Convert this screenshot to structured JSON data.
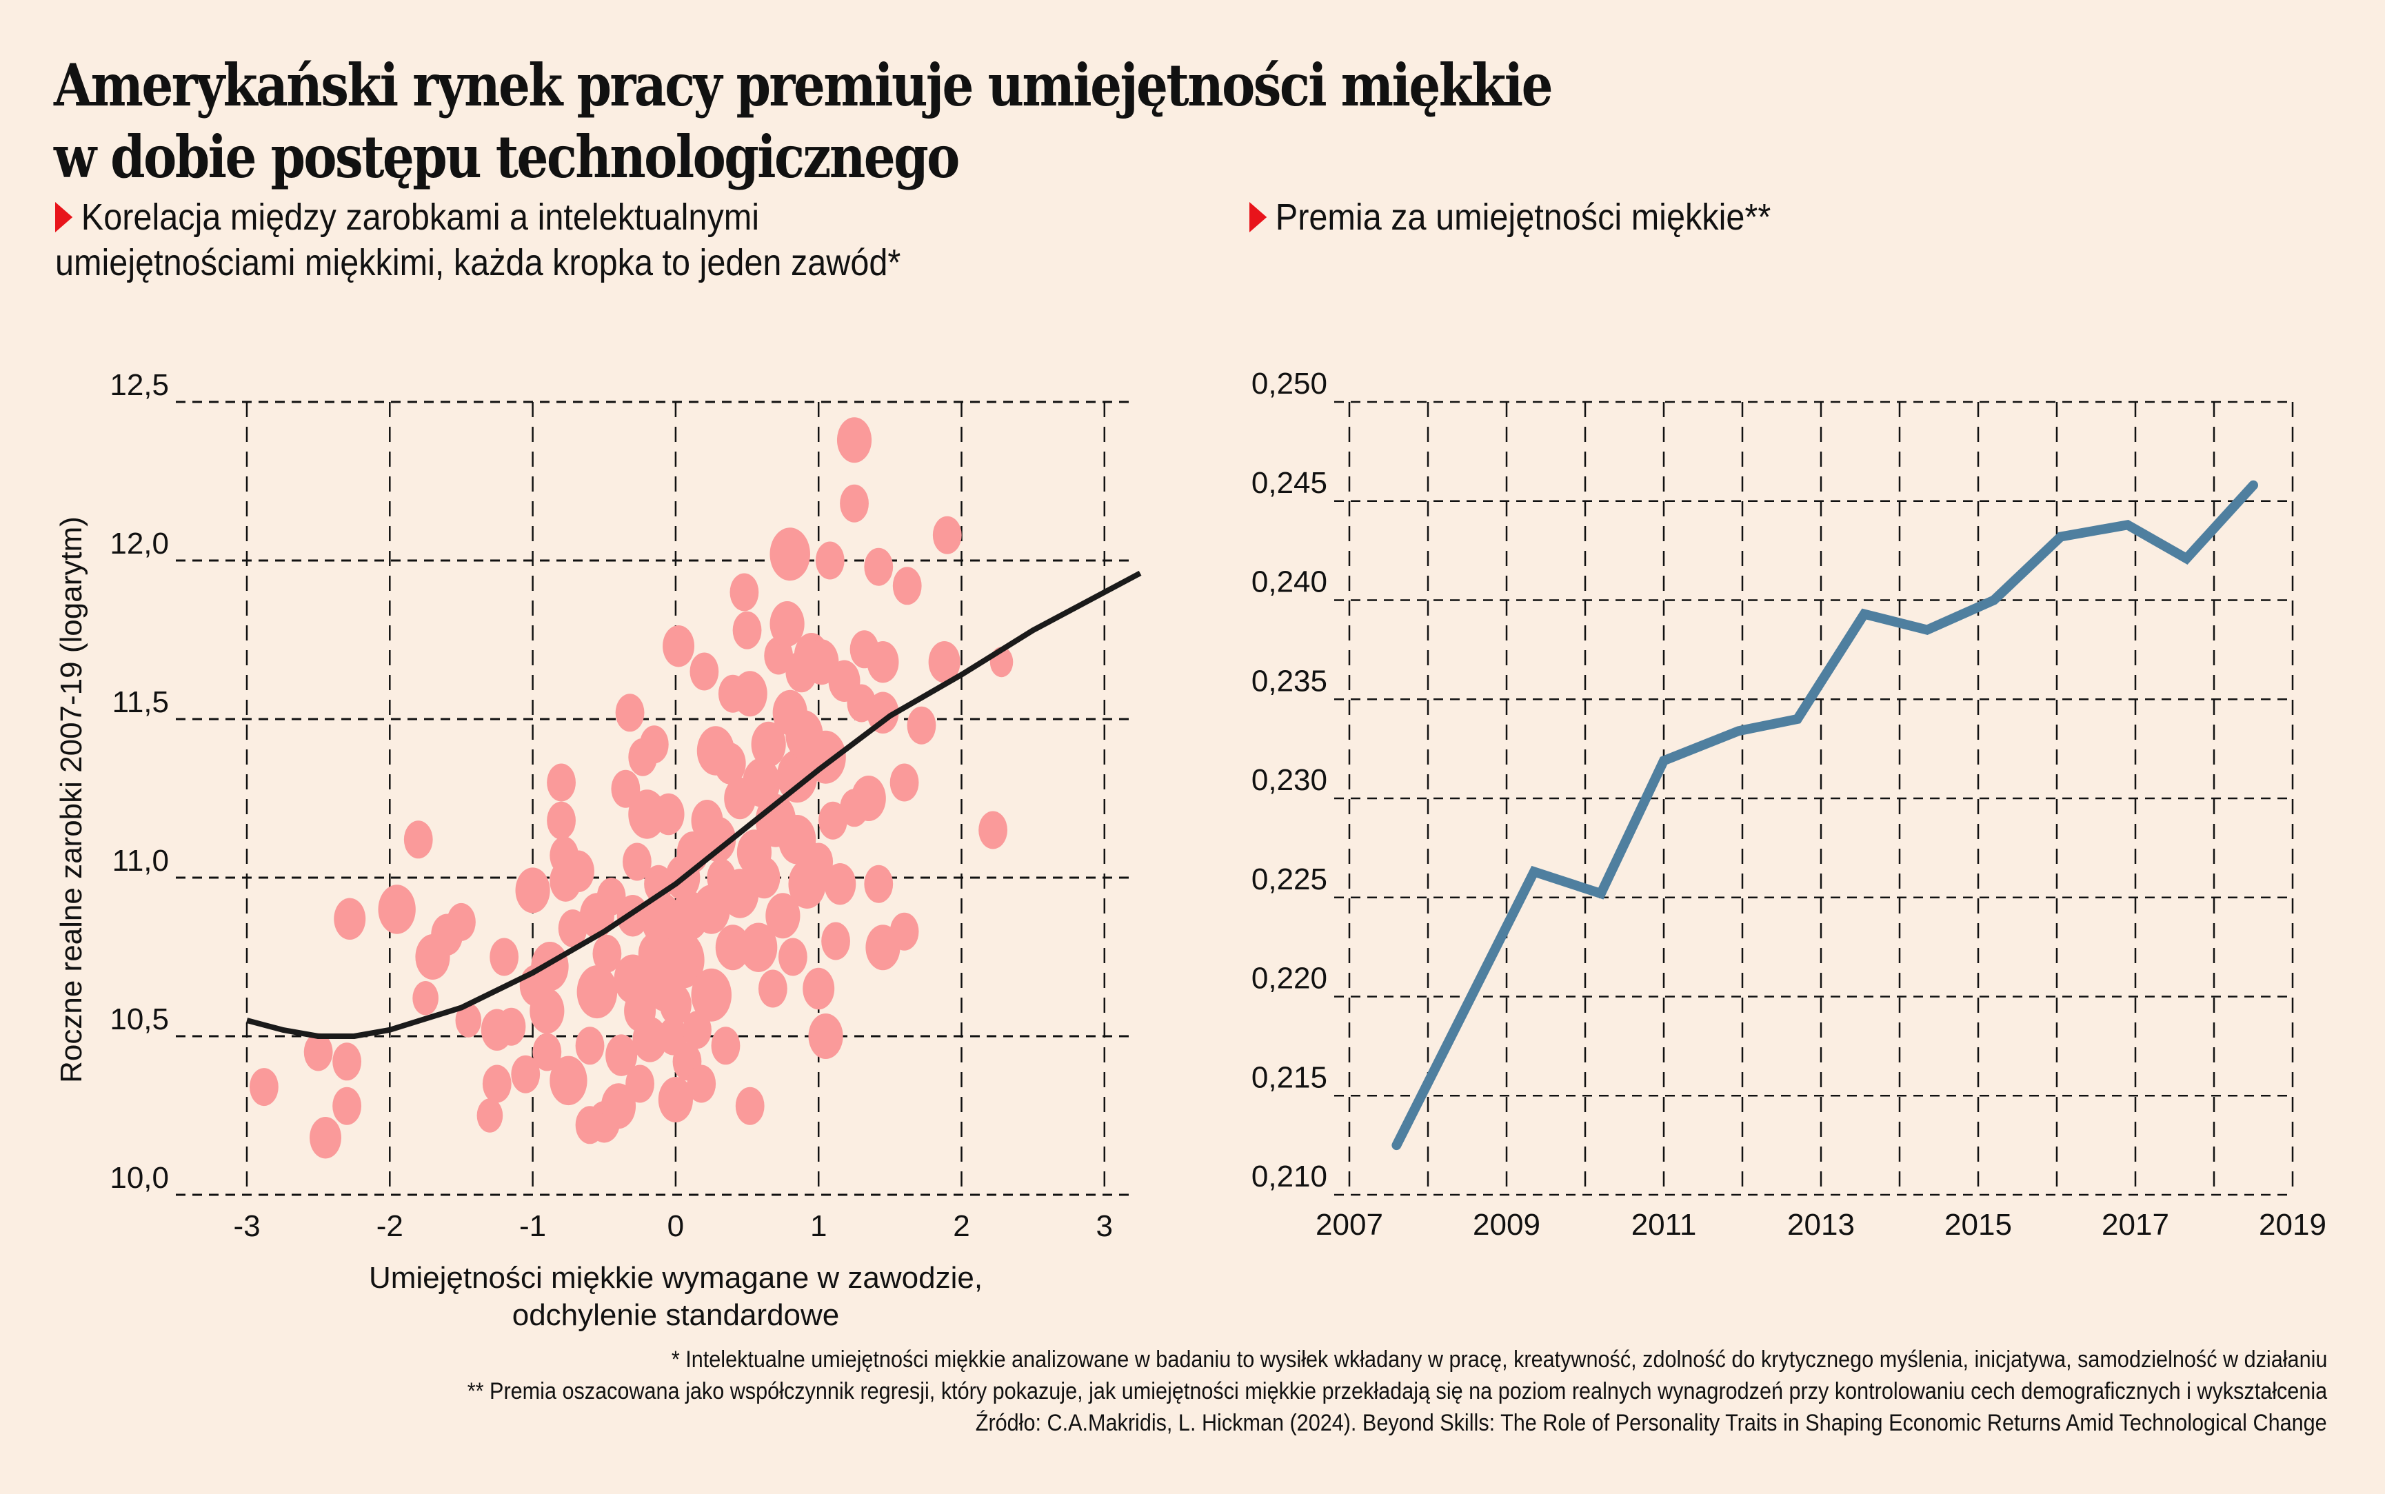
{
  "title": {
    "line1": "Amerykański rynek pracy premiuje umiejętności miękkie",
    "line2": "w dobie postępu technologicznego"
  },
  "left_panel": {
    "subtitle_line1": "Korelacja między zarobkami a intelektualnymi",
    "subtitle_line2": "umiejętnościami miękkimi, każda kropka to jeden zawód*"
  },
  "right_panel": {
    "subtitle": "Premia za umiejętności miękkie**"
  },
  "footnotes": {
    "note1": "* Intelektualne umiejętności miękkie analizowane w badaniu to wysiłek wkładany w pracę, kreatywność, zdolność do krytycznego myślenia, inicjatywa, samodzielność w działaniu",
    "note2": "** Premia oszacowana jako współczynnik regresji, który pokazuje, jak umiejętności miękkie przekładają się na poziom realnych wynagrodzeń przy kontrolowaniu cech demograficznych i wykształcenia",
    "source": "Źródło: C.A.Makridis, L. Hickman (2024). Beyond Skills: The Role of Personality Traits in Shaping Economic Returns Amid Technological Change"
  },
  "colors": {
    "background": "#fbeee2",
    "dot": "#fa9a9a",
    "fit_line": "#1a1a1a",
    "premium_line": "#4f7f9f",
    "marker": "#e8141b"
  },
  "chart_data": [
    {
      "type": "scatter",
      "title": "Korelacja między zarobkami a intelektualnymi umiejętnościami miękkimi, każda kropka to jeden zawód*",
      "xlabel": "Umiejętności miękkie wymagane w zawodzie, odchylenie standardowe",
      "ylabel": "Roczne realne zarobki 2007-19 (logarytm)",
      "xlim": [
        -3.5,
        3.3
      ],
      "ylim": [
        10.0,
        12.5
      ],
      "x_ticks": [
        -3,
        -2,
        -1,
        0,
        1,
        2,
        3
      ],
      "x_tick_labels": [
        "-3",
        "-2",
        "-1",
        "0",
        "1",
        "2",
        "3"
      ],
      "y_ticks": [
        10.0,
        10.5,
        11.0,
        11.5,
        12.0,
        12.5
      ],
      "y_tick_labels": [
        "10,0",
        "10,5",
        "11,0",
        "11,5",
        "12,0",
        "12,5"
      ],
      "grid": true,
      "fit_curve": [
        [
          -3.0,
          10.55
        ],
        [
          -2.75,
          10.52
        ],
        [
          -2.5,
          10.5
        ],
        [
          -2.25,
          10.5
        ],
        [
          -2.0,
          10.52
        ],
        [
          -1.5,
          10.59
        ],
        [
          -1.0,
          10.7
        ],
        [
          -0.5,
          10.83
        ],
        [
          0.0,
          10.98
        ],
        [
          0.5,
          11.16
        ],
        [
          1.0,
          11.34
        ],
        [
          1.5,
          11.51
        ],
        [
          2.0,
          11.64
        ],
        [
          2.5,
          11.78
        ],
        [
          3.0,
          11.9
        ],
        [
          3.25,
          11.96
        ]
      ],
      "points": [
        [
          -2.88,
          10.34,
          1.0
        ],
        [
          -2.5,
          10.45,
          1.0
        ],
        [
          -2.45,
          10.18,
          1.1
        ],
        [
          -2.3,
          10.42,
          1.0
        ],
        [
          -2.3,
          10.28,
          1.0
        ],
        [
          -2.28,
          10.87,
          1.1
        ],
        [
          -1.95,
          10.9,
          1.3
        ],
        [
          -1.8,
          11.12,
          1.0
        ],
        [
          -1.75,
          10.62,
          0.9
        ],
        [
          -1.7,
          10.75,
          1.2
        ],
        [
          -1.6,
          10.82,
          1.1
        ],
        [
          -1.5,
          10.86,
          1.0
        ],
        [
          -1.45,
          10.55,
          0.9
        ],
        [
          -1.3,
          10.25,
          0.9
        ],
        [
          -1.25,
          10.35,
          1.0
        ],
        [
          -1.25,
          10.52,
          1.1
        ],
        [
          -1.2,
          10.75,
          1.0
        ],
        [
          -1.15,
          10.53,
          1.0
        ],
        [
          -1.05,
          10.38,
          1.0
        ],
        [
          -1.0,
          10.96,
          1.2
        ],
        [
          -0.98,
          10.66,
          1.1
        ],
        [
          -0.9,
          10.58,
          1.2
        ],
        [
          -0.9,
          10.45,
          1.0
        ],
        [
          -0.88,
          10.72,
          1.3
        ],
        [
          -0.8,
          11.3,
          1.0
        ],
        [
          -0.8,
          11.18,
          1.0
        ],
        [
          -0.78,
          11.07,
          1.0
        ],
        [
          -0.77,
          10.99,
          1.1
        ],
        [
          -0.75,
          10.36,
          1.3
        ],
        [
          -0.72,
          10.84,
          1.0
        ],
        [
          -0.68,
          11.02,
          1.1
        ],
        [
          -0.6,
          10.47,
          1.0
        ],
        [
          -0.6,
          10.22,
          1.0
        ],
        [
          -0.55,
          10.88,
          1.2
        ],
        [
          -0.55,
          10.64,
          1.4
        ],
        [
          -0.5,
          10.23,
          1.1
        ],
        [
          -0.48,
          10.76,
          1.0
        ],
        [
          -0.45,
          10.94,
          1.0
        ],
        [
          -0.4,
          10.28,
          1.2
        ],
        [
          -0.38,
          10.44,
          1.1
        ],
        [
          -0.35,
          11.28,
          1.0
        ],
        [
          -0.32,
          11.52,
          1.0
        ],
        [
          -0.3,
          10.68,
          1.3
        ],
        [
          -0.3,
          10.88,
          1.1
        ],
        [
          -0.27,
          11.05,
          1.0
        ],
        [
          -0.25,
          10.35,
          1.0
        ],
        [
          -0.25,
          10.58,
          1.1
        ],
        [
          -0.23,
          11.38,
          1.0
        ],
        [
          -0.2,
          11.2,
          1.3
        ],
        [
          -0.18,
          10.49,
          1.2
        ],
        [
          -0.15,
          10.76,
          1.1
        ],
        [
          -0.15,
          11.42,
          1.0
        ],
        [
          -0.12,
          10.98,
          1.0
        ],
        [
          -0.1,
          10.87,
          1.4
        ],
        [
          -0.08,
          10.65,
          1.2
        ],
        [
          -0.05,
          11.2,
          1.1
        ],
        [
          -0.02,
          10.5,
          1.0
        ],
        [
          0.0,
          10.6,
          1.1
        ],
        [
          0.0,
          10.3,
          1.2
        ],
        [
          0.02,
          11.73,
          1.1
        ],
        [
          0.05,
          11.0,
          1.2
        ],
        [
          0.05,
          10.74,
          1.5
        ],
        [
          0.08,
          10.42,
          1.0
        ],
        [
          0.1,
          10.88,
          1.3
        ],
        [
          0.12,
          11.08,
          1.1
        ],
        [
          0.15,
          10.52,
          1.0
        ],
        [
          0.18,
          10.35,
          1.0
        ],
        [
          0.2,
          11.65,
          1.0
        ],
        [
          0.22,
          11.18,
          1.1
        ],
        [
          0.25,
          10.9,
          1.3
        ],
        [
          0.25,
          10.63,
          1.4
        ],
        [
          0.28,
          11.4,
          1.3
        ],
        [
          0.3,
          11.12,
          1.2
        ],
        [
          0.32,
          11.0,
          1.0
        ],
        [
          0.35,
          10.47,
          1.0
        ],
        [
          0.38,
          11.36,
          1.1
        ],
        [
          0.4,
          10.78,
          1.2
        ],
        [
          0.4,
          11.58,
          1.0
        ],
        [
          0.45,
          11.25,
          1.1
        ],
        [
          0.45,
          10.95,
          1.3
        ],
        [
          0.48,
          11.9,
          1.0
        ],
        [
          0.5,
          11.78,
          1.0
        ],
        [
          0.52,
          10.28,
          1.0
        ],
        [
          0.52,
          11.58,
          1.2
        ],
        [
          0.55,
          11.08,
          1.2
        ],
        [
          0.58,
          10.78,
          1.3
        ],
        [
          0.6,
          11.3,
          1.3
        ],
        [
          0.62,
          11.0,
          1.1
        ],
        [
          0.65,
          11.42,
          1.2
        ],
        [
          0.68,
          10.65,
          1.0
        ],
        [
          0.7,
          11.18,
          1.4
        ],
        [
          0.72,
          11.7,
          1.0
        ],
        [
          0.75,
          10.88,
          1.2
        ],
        [
          0.78,
          11.8,
          1.2
        ],
        [
          0.8,
          12.02,
          1.4
        ],
        [
          0.8,
          11.52,
          1.2
        ],
        [
          0.82,
          10.75,
          1.0
        ],
        [
          0.85,
          11.32,
          1.4
        ],
        [
          0.85,
          11.12,
          1.3
        ],
        [
          0.88,
          11.65,
          1.1
        ],
        [
          0.9,
          11.45,
          1.3
        ],
        [
          0.92,
          10.98,
          1.3
        ],
        [
          0.95,
          11.7,
          1.2
        ],
        [
          1.0,
          11.05,
          1.0
        ],
        [
          1.0,
          10.65,
          1.1
        ],
        [
          1.02,
          11.68,
          1.2
        ],
        [
          1.05,
          11.38,
          1.4
        ],
        [
          1.05,
          10.5,
          1.2
        ],
        [
          1.08,
          12.0,
          1.0
        ],
        [
          1.1,
          11.18,
          1.0
        ],
        [
          1.12,
          10.8,
          1.0
        ],
        [
          1.15,
          10.98,
          1.1
        ],
        [
          1.18,
          11.62,
          1.1
        ],
        [
          1.25,
          11.22,
          1.0
        ],
        [
          1.25,
          12.38,
          1.2
        ],
        [
          1.25,
          12.18,
          1.0
        ],
        [
          1.3,
          11.55,
          1.0
        ],
        [
          1.32,
          11.72,
          1.0
        ],
        [
          1.35,
          11.25,
          1.2
        ],
        [
          1.42,
          10.98,
          1.0
        ],
        [
          1.42,
          11.98,
          1.0
        ],
        [
          1.45,
          11.68,
          1.1
        ],
        [
          1.45,
          11.52,
          1.1
        ],
        [
          1.45,
          10.78,
          1.2
        ],
        [
          1.6,
          10.83,
          1.0
        ],
        [
          1.6,
          11.3,
          1.0
        ],
        [
          1.62,
          11.92,
          1.0
        ],
        [
          1.72,
          11.48,
          1.0
        ],
        [
          1.88,
          11.68,
          1.1
        ],
        [
          1.9,
          12.08,
          1.0
        ],
        [
          2.22,
          11.15,
          1.0
        ],
        [
          2.28,
          11.68,
          0.8
        ]
      ]
    },
    {
      "type": "line",
      "title": "Premia za umiejętności miękkie**",
      "xlim": [
        2007,
        2019.3
      ],
      "ylim": [
        0.21,
        0.25
      ],
      "x_ticks": [
        2007,
        2009,
        2011,
        2013,
        2015,
        2017,
        2019
      ],
      "x_tick_labels": [
        "2007",
        "2009",
        "2011",
        "2013",
        "2015",
        "2017",
        "2019"
      ],
      "x_minor_grid": [
        2008,
        2010,
        2012,
        2014,
        2016,
        2018
      ],
      "y_ticks": [
        0.21,
        0.215,
        0.22,
        0.225,
        0.23,
        0.235,
        0.24,
        0.245,
        0.25
      ],
      "y_tick_labels": [
        "0,210",
        "0,215",
        "0,220",
        "0,225",
        "0,230",
        "0,235",
        "0,240",
        "0,245",
        "0,250"
      ],
      "grid": true,
      "series": [
        {
          "name": "Premia za umiejętności miękkie",
          "x": [
            2007.6,
            2009.35,
            2010.2,
            2011.0,
            2011.95,
            2012.7,
            2013.55,
            2014.35,
            2015.2,
            2016.05,
            2016.9,
            2017.65,
            2018.5
          ],
          "values": [
            0.2125,
            0.2263,
            0.2252,
            0.2319,
            0.2334,
            0.234,
            0.2393,
            0.2385,
            0.24,
            0.2432,
            0.2438,
            0.2421,
            0.2458
          ]
        }
      ]
    }
  ]
}
